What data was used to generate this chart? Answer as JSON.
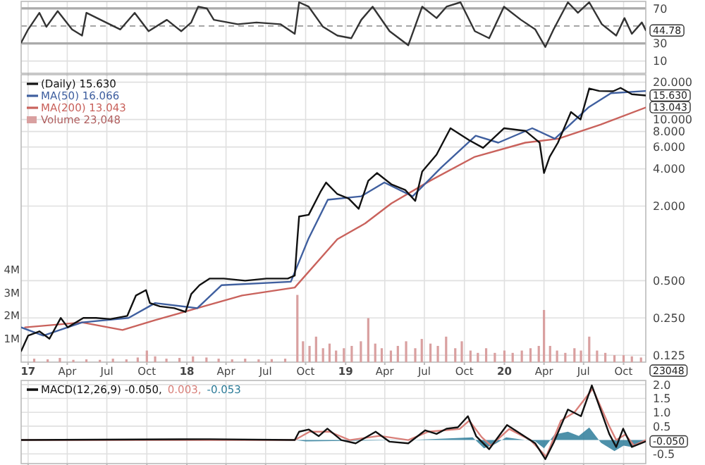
{
  "chart_data": [
    {
      "type": "line",
      "xlim": [
        "2016-12-16",
        "2020-11-21"
      ],
      "ylim": [
        -4,
        78
      ],
      "yticks": [
        70,
        30,
        10
      ],
      "grid": true,
      "tick_labels": "y",
      "xticks": [
        {
          "value": "2017-01-01",
          "label": null
        },
        {
          "value": "2017-04-01",
          "label": null
        },
        {
          "value": "2017-07-01",
          "label": null
        },
        {
          "value": "2017-10-01",
          "label": null
        },
        {
          "value": "2018-01-01",
          "label": null
        },
        {
          "value": "2018-04-01",
          "label": null
        },
        {
          "value": "2018-07-01",
          "label": null
        },
        {
          "value": "2018-10-01",
          "label": null
        },
        {
          "value": "2019-01-01",
          "label": null
        },
        {
          "value": "2019-04-01",
          "label": null
        },
        {
          "value": "2019-07-01",
          "label": null
        },
        {
          "value": "2019-10-01",
          "label": null
        },
        {
          "value": "2020-01-01",
          "label": null
        },
        {
          "value": "2020-04-01",
          "label": null
        },
        {
          "value": "2020-07-01",
          "label": null
        },
        {
          "value": "2020-10-01",
          "label": null
        }
      ],
      "ref_lines": [
        {
          "axis": "y",
          "value": 70,
          "color": "#aaaaaa"
        },
        {
          "axis": "y",
          "value": 30,
          "color": "#aaaaaa"
        },
        {
          "axis": "y",
          "value": 50,
          "color": "#999999",
          "line_style": "dashed"
        }
      ],
      "series": [
        {
          "color": "#333333",
          "x": [
            "2016-12-16",
            "2017-01-01",
            "2017-01-27",
            "2017-02-12",
            "2017-03-10",
            "2017-04-12",
            "2017-05-05",
            "2017-05-15",
            "2017-06-29",
            "2017-08-01",
            "2017-09-03",
            "2017-10-05",
            "2017-11-16",
            "2017-12-19",
            "2018-01-11",
            "2018-01-27",
            "2018-02-16",
            "2018-03-04",
            "2018-04-28",
            "2018-06-10",
            "2018-08-04",
            "2018-09-06",
            "2018-09-16",
            "2018-10-08",
            "2018-11-10",
            "2018-12-13",
            "2019-01-14",
            "2019-02-06",
            "2019-03-04",
            "2019-04-12",
            "2019-05-25",
            "2019-06-26",
            "2019-07-29",
            "2019-08-21",
            "2019-09-22",
            "2019-10-25",
            "2019-11-27",
            "2019-12-31",
            "2020-02-08",
            "2020-03-12",
            "2020-04-04",
            "2020-04-23",
            "2020-05-26",
            "2020-06-18",
            "2020-07-14",
            "2020-08-12",
            "2020-09-14",
            "2020-10-03",
            "2020-10-20",
            "2020-11-12",
            "2020-11-21"
          ],
          "values": [
            31,
            46,
            65,
            49,
            67,
            46,
            39,
            65,
            54,
            46,
            65,
            44,
            57,
            44,
            54,
            72,
            70,
            57,
            52,
            54,
            52,
            41,
            77,
            72,
            49,
            39,
            36,
            57,
            72,
            44,
            28,
            72,
            59,
            72,
            77,
            44,
            36,
            72,
            57,
            46,
            26,
            46,
            77,
            65,
            77,
            52,
            39,
            59,
            41,
            54,
            45
          ]
        }
      ],
      "annotations": [
        {
          "text": "44.78",
          "x": "2020-11-21",
          "y": 44.78
        }
      ]
    },
    {
      "type": "line",
      "log": "y",
      "xlim": [
        "2016-12-16",
        "2020-11-21"
      ],
      "ylim": [
        0.11,
        23
      ],
      "grid": true,
      "legend": "top left",
      "yticks": [
        {
          "value": 20,
          "label": "20.000"
        },
        {
          "value": 10,
          "label": "10.000"
        },
        {
          "value": 8,
          "label": "8.000"
        },
        {
          "value": 6,
          "label": "6.000"
        },
        {
          "value": 4,
          "label": "4.000"
        },
        {
          "value": 2,
          "label": "2.000"
        },
        {
          "value": 0.5,
          "label": "0.500"
        },
        {
          "value": 0.25,
          "label": "0.250"
        },
        {
          "value": 0.125,
          "label": "0.125"
        }
      ],
      "y2lim": [
        0,
        12400000
      ],
      "y2ticks": [
        {
          "value": 1000000,
          "label": "1M"
        },
        {
          "value": 2000000,
          "label": "2M"
        },
        {
          "value": 3000000,
          "label": "3M"
        },
        {
          "value": 4000000,
          "label": "4M"
        }
      ],
      "xticks": [
        {
          "value": "2017-01-01",
          "label": "17"
        },
        {
          "value": "2017-04-01",
          "label": "Apr"
        },
        {
          "value": "2017-07-01",
          "label": "Jul"
        },
        {
          "value": "2017-10-01",
          "label": "Oct"
        },
        {
          "value": "2018-01-01",
          "label": "18"
        },
        {
          "value": "2018-04-01",
          "label": "Apr"
        },
        {
          "value": "2018-07-01",
          "label": "Jul"
        },
        {
          "value": "2018-10-01",
          "label": "Oct"
        },
        {
          "value": "2019-01-01",
          "label": "19"
        },
        {
          "value": "2019-04-01",
          "label": "Apr"
        },
        {
          "value": "2019-07-01",
          "label": "Jul"
        },
        {
          "value": "2019-10-01",
          "label": "Oct"
        },
        {
          "value": "2020-01-01",
          "label": "20"
        },
        {
          "value": "2020-04-01",
          "label": "Apr"
        },
        {
          "value": "2020-07-01",
          "label": "Jul"
        },
        {
          "value": "2020-10-01",
          "label": "Oct"
        }
      ],
      "series": [
        {
          "name": "Volume 23,048",
          "type": "bar",
          "axis": "y2",
          "color": "#d9a0a0",
          "x": [
            "2017-01-15",
            "2017-02-15",
            "2017-03-15",
            "2017-04-15",
            "2017-05-15",
            "2017-06-15",
            "2017-07-15",
            "2017-08-15",
            "2017-09-10",
            "2017-10-01",
            "2017-10-20",
            "2017-11-15",
            "2017-12-15",
            "2018-01-15",
            "2018-02-15",
            "2018-03-15",
            "2018-04-15",
            "2018-05-15",
            "2018-06-15",
            "2018-07-15",
            "2018-08-15",
            "2018-09-12",
            "2018-09-25",
            "2018-10-10",
            "2018-10-25",
            "2018-11-10",
            "2018-11-25",
            "2018-12-10",
            "2018-12-28",
            "2019-01-15",
            "2019-02-05",
            "2019-02-22",
            "2019-03-10",
            "2019-03-25",
            "2019-04-15",
            "2019-05-01",
            "2019-05-20",
            "2019-06-10",
            "2019-06-25",
            "2019-07-15",
            "2019-08-01",
            "2019-08-20",
            "2019-09-10",
            "2019-09-25",
            "2019-10-15",
            "2019-11-01",
            "2019-11-20",
            "2019-12-10",
            "2020-01-01",
            "2020-01-20",
            "2020-02-10",
            "2020-03-01",
            "2020-03-20",
            "2020-04-01",
            "2020-04-15",
            "2020-05-01",
            "2020-05-20",
            "2020-06-10",
            "2020-06-25",
            "2020-07-14",
            "2020-08-01",
            "2020-08-20",
            "2020-09-10",
            "2020-10-01",
            "2020-10-20",
            "2020-11-10"
          ],
          "values": [
            150000,
            120000,
            180000,
            100000,
            120000,
            100000,
            150000,
            120000,
            200000,
            500000,
            250000,
            150000,
            180000,
            250000,
            200000,
            150000,
            120000,
            150000,
            120000,
            130000,
            150000,
            2900000,
            900000,
            700000,
            1100000,
            600000,
            800000,
            500000,
            600000,
            700000,
            900000,
            1900000,
            800000,
            600000,
            500000,
            700000,
            900000,
            600000,
            1000000,
            800000,
            700000,
            1100000,
            600000,
            900000,
            500000,
            400000,
            600000,
            400000,
            500000,
            400000,
            500000,
            600000,
            700000,
            2250000,
            700000,
            500000,
            400000,
            600000,
            500000,
            1100000,
            500000,
            400000,
            300000,
            300000,
            250000,
            200000
          ]
        },
        {
          "name": "MA(200) 13.043",
          "color": "#c9625c",
          "x": [
            "2016-12-25",
            "2017-05-05",
            "2017-08-06",
            "2017-10-20",
            "2018-01-25",
            "2018-05-08",
            "2018-09-06",
            "2018-12-13",
            "2019-02-15",
            "2019-04-16",
            "2019-07-14",
            "2019-10-25",
            "2020-02-18",
            "2020-05-04",
            "2020-08-09",
            "2020-11-21"
          ],
          "values": [
            0.21,
            0.23,
            0.2,
            0.24,
            0.3,
            0.38,
            0.44,
            1.08,
            1.45,
            2.1,
            3.2,
            5.0,
            6.5,
            7.0,
            9.1,
            12.5
          ]
        },
        {
          "name": "MA(50) 16.066",
          "color": "#3f5f9f",
          "x": [
            "2016-12-16",
            "2017-02-05",
            "2017-05-05",
            "2017-08-20",
            "2017-10-20",
            "2018-01-25",
            "2018-03-22",
            "2018-08-28",
            "2018-10-08",
            "2018-11-21",
            "2019-02-06",
            "2019-03-31",
            "2019-06-04",
            "2019-08-09",
            "2019-10-27",
            "2019-12-18",
            "2020-03-05",
            "2020-04-26",
            "2020-07-12",
            "2020-09-02",
            "2020-11-21"
          ],
          "values": [
            0.21,
            0.18,
            0.23,
            0.25,
            0.33,
            0.3,
            0.46,
            0.49,
            1.1,
            2.25,
            2.4,
            3.1,
            2.4,
            4.1,
            7.4,
            6.5,
            8.5,
            7.0,
            12.5,
            16.3,
            17
          ]
        },
        {
          "name": "(Daily) 15.630",
          "color": "#111111",
          "x": [
            "2016-12-16",
            "2017-01-01",
            "2017-01-27",
            "2017-02-19",
            "2017-03-17",
            "2017-04-02",
            "2017-05-08",
            "2017-06-06",
            "2017-07-09",
            "2017-08-17",
            "2017-09-06",
            "2017-09-29",
            "2017-10-08",
            "2017-10-31",
            "2017-12-03",
            "2017-12-29",
            "2018-01-11",
            "2018-01-30",
            "2018-02-22",
            "2018-03-27",
            "2018-05-15",
            "2018-07-03",
            "2018-08-21",
            "2018-09-06",
            "2018-09-12",
            "2018-09-16",
            "2018-10-08",
            "2018-11-04",
            "2018-11-17",
            "2018-12-13",
            "2019-01-08",
            "2019-01-31",
            "2019-02-22",
            "2019-03-14",
            "2019-04-16",
            "2019-05-18",
            "2019-06-10",
            "2019-06-26",
            "2019-07-29",
            "2019-08-30",
            "2019-10-12",
            "2019-11-13",
            "2019-12-31",
            "2020-02-18",
            "2020-03-22",
            "2020-04-01",
            "2020-04-14",
            "2020-05-03",
            "2020-06-02",
            "2020-06-24",
            "2020-07-14",
            "2020-08-06",
            "2020-09-07",
            "2020-09-24",
            "2020-10-20",
            "2020-11-21"
          ],
          "values": [
            0.135,
            0.18,
            0.195,
            0.17,
            0.25,
            0.21,
            0.25,
            0.25,
            0.245,
            0.26,
            0.38,
            0.42,
            0.33,
            0.31,
            0.3,
            0.28,
            0.39,
            0.46,
            0.52,
            0.52,
            0.5,
            0.52,
            0.52,
            0.55,
            1.08,
            1.65,
            1.7,
            2.6,
            3.1,
            2.5,
            2.3,
            1.9,
            3.2,
            3.7,
            3.0,
            2.7,
            2.2,
            3.8,
            5.2,
            8.5,
            6.8,
            5.9,
            8.5,
            8.1,
            6.5,
            3.7,
            5.0,
            6.5,
            11.5,
            10,
            17.8,
            17,
            16.9,
            18,
            16,
            15.63
          ]
        }
      ],
      "annotations": [
        {
          "text": "15.630",
          "x": "2020-11-21",
          "y": 15.63
        },
        {
          "text": "13.043",
          "x": "2020-11-21",
          "y": 13.043
        },
        "23048"
      ]
    },
    {
      "type": "line",
      "xlim": [
        "2016-12-16",
        "2020-11-21"
      ],
      "ylim": [
        -0.85,
        2.15
      ],
      "grid": true,
      "tick_labels": "y",
      "legend": "top left",
      "yticks": [
        {
          "value": 2,
          "label": "2.0"
        },
        1.5,
        {
          "value": 1,
          "label": "1.0"
        },
        0.5,
        -0.5
      ],
      "xticks": [
        {
          "value": "2017-01-01",
          "label": null
        },
        {
          "value": "2017-04-01",
          "label": null
        },
        {
          "value": "2017-07-01",
          "label": null
        },
        {
          "value": "2017-10-01",
          "label": null
        },
        {
          "value": "2018-01-01",
          "label": null
        },
        {
          "value": "2018-04-01",
          "label": null
        },
        {
          "value": "2018-07-01",
          "label": null
        },
        {
          "value": "2018-10-01",
          "label": null
        },
        {
          "value": "2019-01-01",
          "label": null
        },
        {
          "value": "2019-04-01",
          "label": null
        },
        {
          "value": "2019-07-01",
          "label": null
        },
        {
          "value": "2019-10-01",
          "label": null
        },
        {
          "value": "2020-01-01",
          "label": null
        },
        {
          "value": "2020-04-01",
          "label": null
        },
        {
          "value": "2020-07-01",
          "label": null
        },
        {
          "value": "2020-10-01",
          "label": null
        }
      ],
      "series": [
        {
          "name": "-0.053",
          "type": "area",
          "color": "#2e7d9a",
          "x": [
            "2016-12-16",
            "2018-09-06",
            "2018-10-01",
            "2019-06-01",
            "2019-10-20",
            "2019-11-15",
            "2019-12-10",
            "2020-01-05",
            "2020-03-12",
            "2020-04-01",
            "2020-04-25",
            "2020-05-26",
            "2020-06-20",
            "2020-07-14",
            "2020-08-10",
            "2020-09-10",
            "2020-10-01",
            "2020-10-20",
            "2020-11-21"
          ],
          "values": [
            0,
            0,
            -0.05,
            0,
            0.1,
            -0.3,
            -0.15,
            0.1,
            -0.05,
            -0.3,
            0.2,
            0.3,
            0.15,
            0.45,
            -0.1,
            -0.4,
            -0.2,
            -0.25,
            -0.05
          ]
        },
        {
          "name": "0.003,",
          "color": "#d9807a",
          "x": [
            "2016-12-16",
            "2018-09-06",
            "2018-10-10",
            "2018-11-25",
            "2019-01-10",
            "2019-03-20",
            "2019-05-25",
            "2019-07-10",
            "2019-09-20",
            "2019-10-12",
            "2019-11-10",
            "2019-12-01",
            "2020-01-12",
            "2020-03-01",
            "2020-04-06",
            "2020-05-10",
            "2020-06-10",
            "2020-07-22",
            "2020-08-29",
            "2020-09-14",
            "2020-10-05",
            "2020-10-25",
            "2020-11-21"
          ],
          "values": [
            0,
            0,
            0.3,
            0.3,
            0,
            0.15,
            0,
            0.3,
            0.4,
            0.7,
            0.1,
            -0.2,
            0.4,
            0,
            -0.6,
            0.7,
            1.0,
            1.85,
            0.5,
            0,
            0.2,
            -0.2,
            0
          ]
        },
        {
          "name": "MACD(12,26,9) -0.050,",
          "color": "#111111",
          "x": [
            "2016-12-16",
            "2017-09-12",
            "2018-02-22",
            "2018-09-06",
            "2018-09-16",
            "2018-10-08",
            "2018-10-31",
            "2018-11-20",
            "2018-12-22",
            "2019-01-24",
            "2019-03-11",
            "2019-04-12",
            "2019-05-25",
            "2019-07-03",
            "2019-07-29",
            "2019-08-21",
            "2019-09-16",
            "2019-10-09",
            "2019-10-28",
            "2019-11-27",
            "2020-01-07",
            "2020-02-08",
            "2020-03-12",
            "2020-04-04",
            "2020-04-23",
            "2020-05-26",
            "2020-06-25",
            "2020-07-20",
            "2020-08-29",
            "2020-09-14",
            "2020-09-30",
            "2020-10-20",
            "2020-11-21"
          ],
          "values": [
            0,
            0.02,
            0.03,
            0,
            0.3,
            0.38,
            0.14,
            0.41,
            0,
            -0.12,
            0.3,
            -0.06,
            -0.12,
            0.35,
            0.22,
            0.41,
            0.46,
            0.86,
            0.14,
            -0.33,
            0.54,
            0.22,
            -0.12,
            -0.69,
            -0.1,
            1.1,
            0.86,
            1.97,
            0.22,
            -0.25,
            0.41,
            -0.25,
            -0.05
          ]
        }
      ],
      "annotations": [
        {
          "text": "-0.050",
          "x": "2020-11-21",
          "y": -0.05
        }
      ]
    }
  ]
}
